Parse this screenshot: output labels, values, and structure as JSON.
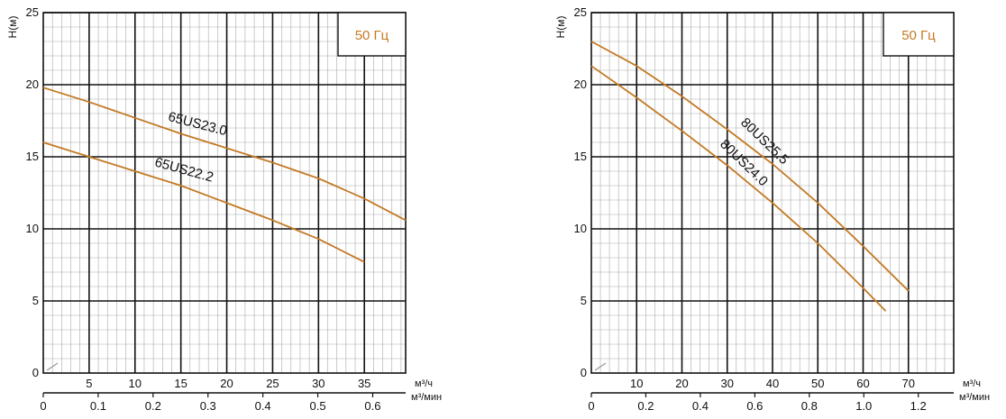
{
  "colors": {
    "curve": "#c47a24",
    "grid_major": "#111111",
    "grid_minor": "#aaaaaa",
    "badge_text": "#c47a24"
  },
  "chart_data": [
    {
      "type": "line",
      "badge": "50 Гц",
      "ylabel": "H(м)",
      "ylim": [
        0,
        25
      ],
      "y_ticks": [
        0,
        5,
        10,
        15,
        20,
        25
      ],
      "xlim": [
        0,
        39.5
      ],
      "x_ticks": [
        5,
        10,
        15,
        20,
        25,
        30,
        35
      ],
      "x_unit": "м³/ч",
      "x2_unit": "м³/мин",
      "x2_ticks": [
        0,
        0.1,
        0.2,
        0.3,
        0.4,
        0.5,
        0.6
      ],
      "grid": true,
      "series": [
        {
          "name": "65US23.0",
          "x": [
            0,
            5,
            10,
            15,
            20,
            25,
            30,
            35,
            39.5
          ],
          "values": [
            19.8,
            18.8,
            17.7,
            16.6,
            15.6,
            14.6,
            13.5,
            12.1,
            10.6
          ]
        },
        {
          "name": "65US22.2",
          "x": [
            0,
            5,
            10,
            15,
            20,
            25,
            30,
            35
          ],
          "values": [
            16.0,
            15.0,
            14.0,
            13.0,
            11.8,
            10.6,
            9.3,
            7.7
          ]
        }
      ]
    },
    {
      "type": "line",
      "badge": "50 Гц",
      "ylabel": "H(м)",
      "ylim": [
        0,
        25
      ],
      "y_ticks": [
        0,
        5,
        10,
        15,
        20,
        25
      ],
      "xlim": [
        0,
        80
      ],
      "x_ticks": [
        10,
        20,
        30,
        40,
        50,
        60,
        70
      ],
      "x_unit": "м³/ч",
      "x2_unit": "м³/мин",
      "x2_ticks": [
        0,
        0.2,
        0.4,
        0.6,
        0.8,
        1.0,
        1.2
      ],
      "grid": true,
      "series": [
        {
          "name": "80US25.5",
          "x": [
            0,
            10,
            20,
            30,
            40,
            50,
            60,
            70
          ],
          "values": [
            23.0,
            21.3,
            19.2,
            16.9,
            14.5,
            11.8,
            8.8,
            5.7
          ]
        },
        {
          "name": "80US24.0",
          "x": [
            0,
            10,
            20,
            30,
            40,
            50,
            60,
            65
          ],
          "values": [
            21.3,
            19.1,
            16.8,
            14.4,
            11.8,
            9.0,
            5.9,
            4.3
          ]
        }
      ]
    }
  ]
}
